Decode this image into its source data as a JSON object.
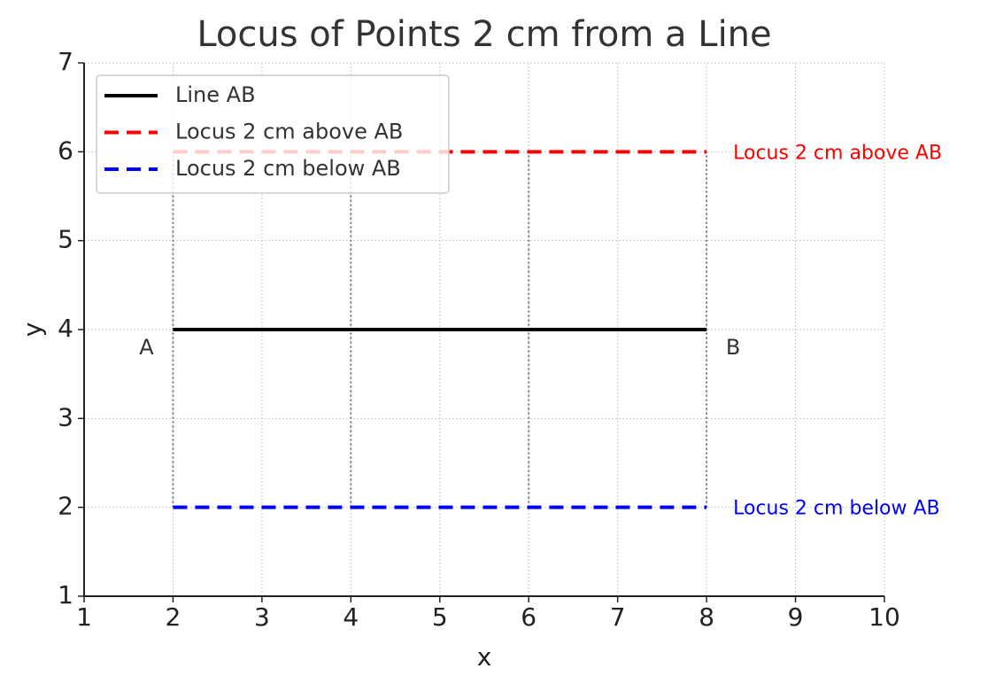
{
  "chart_data": {
    "type": "line",
    "title": "Locus of Points 2 cm from a Line",
    "x_label": "x",
    "y_label": "y",
    "xlim": [
      1,
      10
    ],
    "ylim": [
      1,
      7
    ],
    "xticks": [
      1,
      2,
      3,
      4,
      5,
      6,
      7,
      8,
      9,
      10
    ],
    "yticks": [
      1,
      2,
      3,
      4,
      5,
      6,
      7
    ],
    "grid": true,
    "legend": "upper-left",
    "series": [
      {
        "name": "Line AB",
        "color": "#000000",
        "dash": "solid",
        "x": [
          2,
          8
        ],
        "values": [
          4,
          4
        ]
      },
      {
        "name": "Locus 2 cm above AB",
        "color": "#ff0000",
        "dash": "dashed",
        "x": [
          2,
          8
        ],
        "values": [
          6,
          6
        ]
      },
      {
        "name": "Locus 2 cm below AB",
        "color": "#0000ff",
        "dash": "dashed",
        "x": [
          2,
          8
        ],
        "values": [
          2,
          2
        ]
      }
    ],
    "connectors": [
      {
        "x": 2,
        "y": [
          2,
          6
        ]
      },
      {
        "x": 4,
        "y": [
          2,
          6
        ]
      },
      {
        "x": 6,
        "y": [
          2,
          6
        ]
      },
      {
        "x": 8,
        "y": [
          2,
          6
        ]
      }
    ],
    "annotations": [
      "A",
      "B",
      "Locus 2 cm above AB",
      "Locus 2 cm below AB"
    ]
  }
}
